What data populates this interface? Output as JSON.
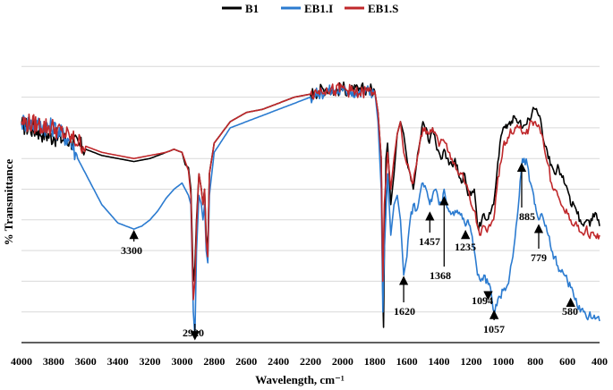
{
  "chart_data": {
    "type": "line",
    "title": "",
    "xlabel": "Wavelength, cm⁻¹",
    "ylabel": "% Transmittance",
    "xlim": [
      4000,
      400
    ],
    "x_reversed": true,
    "ylim": [
      0,
      100
    ],
    "y_tick_labels_shown": false,
    "grid": "horizontal",
    "legend_placement": "top-center",
    "x_ticks": [
      4000,
      3800,
      3600,
      3400,
      3200,
      3000,
      2800,
      2600,
      2400,
      2200,
      2000,
      1800,
      1600,
      1400,
      1200,
      1000,
      800,
      600,
      400
    ],
    "y_grid": [
      10,
      20,
      30,
      40,
      50,
      60,
      70,
      80,
      90
    ],
    "series": [
      {
        "name": "B1",
        "color": "#000000",
        "x": [
          4000,
          3900,
          3800,
          3700,
          3600,
          3500,
          3400,
          3300,
          3200,
          3100,
          3050,
          3000,
          2980,
          2960,
          2945,
          2930,
          2920,
          2910,
          2895,
          2880,
          2870,
          2860,
          2850,
          2840,
          2830,
          2800,
          2700,
          2600,
          2500,
          2400,
          2300,
          2200,
          2150,
          2100,
          2050,
          2000,
          1950,
          1900,
          1850,
          1800,
          1780,
          1760,
          1750,
          1745,
          1740,
          1730,
          1720,
          1700,
          1680,
          1660,
          1640,
          1620,
          1600,
          1580,
          1560,
          1540,
          1520,
          1500,
          1480,
          1460,
          1450,
          1440,
          1420,
          1400,
          1380,
          1368,
          1350,
          1320,
          1300,
          1280,
          1260,
          1240,
          1220,
          1200,
          1180,
          1160,
          1140,
          1120,
          1100,
          1080,
          1060,
          1040,
          1020,
          1000,
          960,
          920,
          900,
          880,
          860,
          840,
          820,
          800,
          780,
          760,
          740,
          720,
          700,
          680,
          660,
          640,
          620,
          600,
          580,
          560,
          540,
          520,
          500,
          480,
          460,
          440,
          420,
          400
        ],
        "y": [
          71,
          69,
          67,
          66,
          63,
          61,
          60,
          59,
          60,
          62,
          63,
          62,
          58,
          57,
          50,
          20,
          25,
          40,
          55,
          50,
          45,
          50,
          35,
          30,
          55,
          65,
          72,
          75,
          76,
          78,
          80,
          81,
          82,
          83,
          82,
          83,
          82,
          82,
          83,
          82,
          75,
          60,
          15,
          5,
          30,
          60,
          65,
          45,
          55,
          68,
          72,
          68,
          60,
          55,
          50,
          58,
          65,
          72,
          70,
          65,
          68,
          70,
          65,
          62,
          60,
          63,
          60,
          58,
          60,
          55,
          52,
          55,
          48,
          48,
          50,
          38,
          38,
          42,
          40,
          42,
          45,
          55,
          65,
          70,
          72,
          73,
          72,
          70,
          71,
          73,
          75,
          76,
          74,
          70,
          64,
          60,
          58,
          55,
          58,
          55,
          52,
          50,
          45,
          45,
          42,
          40,
          38,
          40,
          38,
          42,
          42,
          38
        ]
      },
      {
        "name": "EB1.I",
        "color": "#2b7bd0",
        "x": [
          4000,
          3900,
          3800,
          3700,
          3650,
          3600,
          3550,
          3500,
          3450,
          3400,
          3350,
          3300,
          3250,
          3200,
          3150,
          3100,
          3050,
          3000,
          2980,
          2960,
          2945,
          2930,
          2920,
          2910,
          2895,
          2880,
          2870,
          2860,
          2850,
          2840,
          2830,
          2800,
          2700,
          2600,
          2500,
          2400,
          2300,
          2200,
          2150,
          2100,
          2050,
          2000,
          1950,
          1900,
          1850,
          1800,
          1780,
          1760,
          1750,
          1740,
          1720,
          1700,
          1680,
          1660,
          1640,
          1620,
          1600,
          1580,
          1560,
          1540,
          1520,
          1500,
          1480,
          1457,
          1440,
          1420,
          1400,
          1380,
          1368,
          1350,
          1320,
          1300,
          1280,
          1260,
          1235,
          1220,
          1200,
          1180,
          1160,
          1140,
          1120,
          1094,
          1080,
          1057,
          1040,
          1020,
          1000,
          980,
          960,
          940,
          920,
          900,
          885,
          870,
          850,
          830,
          810,
          800,
          790,
          779,
          760,
          740,
          720,
          700,
          680,
          660,
          640,
          620,
          600,
          580,
          560,
          540,
          520,
          500,
          480,
          460,
          440,
          420,
          400
        ],
        "y": [
          72,
          71,
          70,
          66,
          60,
          55,
          50,
          45,
          42,
          39,
          38,
          37,
          38,
          40,
          43,
          47,
          50,
          52,
          50,
          48,
          45,
          10,
          2,
          30,
          48,
          45,
          40,
          45,
          30,
          26,
          48,
          62,
          70,
          72,
          74,
          76,
          78,
          80,
          81,
          82,
          82,
          82,
          82,
          81,
          82,
          82,
          72,
          50,
          10,
          30,
          55,
          35,
          45,
          48,
          40,
          22,
          28,
          40,
          45,
          43,
          48,
          52,
          50,
          45,
          48,
          50,
          45,
          45,
          50,
          44,
          42,
          43,
          42,
          42,
          38,
          40,
          36,
          30,
          22,
          20,
          22,
          19,
          18,
          10,
          12,
          15,
          17,
          18,
          22,
          28,
          38,
          48,
          58,
          60,
          58,
          52,
          48,
          45,
          42,
          40,
          42,
          38,
          35,
          30,
          28,
          25,
          23,
          22,
          20,
          18,
          15,
          12,
          10,
          10,
          8,
          10,
          8,
          8,
          7
        ]
      },
      {
        "name": "EB1.S",
        "color": "#c0282b",
        "x": [
          4000,
          3900,
          3800,
          3700,
          3600,
          3500,
          3400,
          3300,
          3200,
          3100,
          3050,
          3000,
          2980,
          2960,
          2945,
          2930,
          2920,
          2910,
          2895,
          2880,
          2870,
          2860,
          2850,
          2840,
          2830,
          2800,
          2700,
          2600,
          2500,
          2400,
          2300,
          2200,
          2150,
          2100,
          2050,
          2000,
          1950,
          1900,
          1850,
          1800,
          1780,
          1760,
          1750,
          1740,
          1720,
          1700,
          1680,
          1660,
          1640,
          1620,
          1600,
          1580,
          1560,
          1540,
          1520,
          1500,
          1480,
          1460,
          1440,
          1420,
          1400,
          1380,
          1360,
          1340,
          1320,
          1300,
          1280,
          1260,
          1240,
          1220,
          1200,
          1180,
          1160,
          1140,
          1120,
          1100,
          1080,
          1060,
          1040,
          1020,
          1000,
          960,
          920,
          900,
          880,
          860,
          840,
          820,
          800,
          780,
          760,
          740,
          720,
          700,
          680,
          660,
          640,
          620,
          600,
          580,
          560,
          540,
          520,
          500,
          480,
          460,
          440,
          420,
          400
        ],
        "y": [
          72,
          71,
          70,
          67,
          64,
          62,
          61,
          60,
          61,
          62,
          63,
          62,
          59,
          56,
          48,
          14,
          20,
          38,
          55,
          50,
          45,
          50,
          33,
          28,
          55,
          65,
          72,
          75,
          76,
          78,
          80,
          81,
          82,
          83,
          82,
          83,
          82,
          81,
          82,
          82,
          75,
          60,
          20,
          45,
          62,
          50,
          60,
          68,
          72,
          62,
          58,
          55,
          52,
          58,
          65,
          70,
          68,
          68,
          70,
          68,
          64,
          66,
          65,
          62,
          60,
          58,
          55,
          55,
          52,
          50,
          45,
          43,
          38,
          35,
          38,
          36,
          38,
          40,
          50,
          58,
          64,
          68,
          70,
          70,
          68,
          68,
          70,
          72,
          72,
          71,
          68,
          62,
          58,
          52,
          50,
          48,
          45,
          43,
          42,
          40,
          38,
          38,
          36,
          35,
          38,
          34,
          36,
          34,
          35
        ]
      }
    ],
    "annotations": [
      {
        "label": "3300",
        "x": 3300,
        "y": 37,
        "arrow": "up"
      },
      {
        "label": "2920",
        "x": 2920,
        "y": 4,
        "arrow": "up"
      },
      {
        "label": "1620",
        "x": 1620,
        "y": 22,
        "arrow": "up"
      },
      {
        "label": "1457",
        "x": 1457,
        "y": 43,
        "arrow": "up"
      },
      {
        "label": "1368",
        "x": 1368,
        "y": 48,
        "arrow": "up"
      },
      {
        "label": "1235",
        "x": 1235,
        "y": 37,
        "arrow": "up"
      },
      {
        "label": "1094",
        "x": 1094,
        "y": 17,
        "arrow": "up"
      },
      {
        "label": "1057",
        "x": 1057,
        "y": 8,
        "arrow": "down"
      },
      {
        "label": "885",
        "x": 885,
        "y": 56,
        "arrow": "down"
      },
      {
        "label": "779",
        "x": 779,
        "y": 36,
        "arrow": "down"
      },
      {
        "label": "580",
        "x": 580,
        "y": 12,
        "arrow": "down"
      }
    ]
  }
}
